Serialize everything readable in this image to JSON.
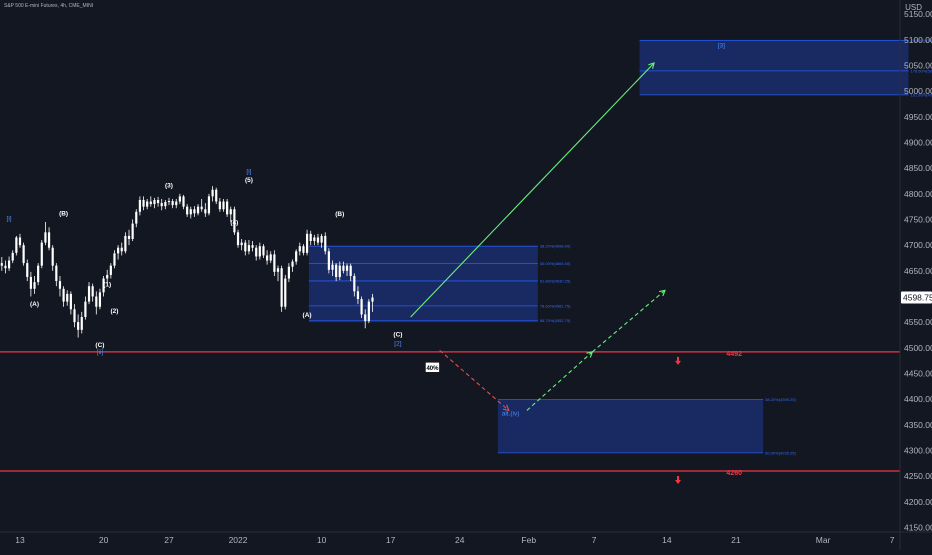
{
  "header": {
    "symbol_line": "S&P 500 E-mini Futures, 4h, CME_MINI",
    "currency": "USD"
  },
  "colors": {
    "background": "#131722",
    "candle": "#ffffff",
    "zone_fill": "#1c2f73",
    "zone_line": "#2962ff",
    "support": "#f23645",
    "projection": "#69f07b",
    "alt_projection": "#e05050",
    "price_label_bg": "#ffffff"
  },
  "chart_data": {
    "type": "candlestick",
    "title": "S&P 500 E-mini Futures, 4h, CME_MINI",
    "ylim": [
      4145,
      5165
    ],
    "y_ticks": [
      4150,
      4200,
      4250,
      4300,
      4350,
      4400,
      4450,
      4500,
      4550,
      4600,
      4650,
      4700,
      4750,
      4800,
      4850,
      4900,
      4950,
      5000,
      5050,
      5100,
      5150
    ],
    "x_ticks": [
      {
        "label": "13",
        "i": 0
      },
      {
        "label": "20",
        "i": 23
      },
      {
        "label": "27",
        "i": 41
      },
      {
        "label": "2022",
        "i": 60
      },
      {
        "label": "10",
        "i": 83
      },
      {
        "label": "17",
        "i": 102
      },
      {
        "label": "24",
        "i": 121
      },
      {
        "label": "Feb",
        "i": 140
      },
      {
        "label": "7",
        "i": 158
      },
      {
        "label": "14",
        "i": 178
      },
      {
        "label": "21",
        "i": 197
      },
      {
        "label": "Mar",
        "i": 221
      },
      {
        "label": "7",
        "i": 240
      }
    ],
    "candles": [
      [
        4665,
        4677,
        4650,
        4660
      ],
      [
        4660,
        4670,
        4645,
        4655
      ],
      [
        4655,
        4678,
        4650,
        4670
      ],
      [
        4670,
        4690,
        4665,
        4685
      ],
      [
        4685,
        4718,
        4680,
        4715
      ],
      [
        4715,
        4722,
        4695,
        4700
      ],
      [
        4700,
        4705,
        4660,
        4665
      ],
      [
        4665,
        4672,
        4630,
        4638
      ],
      [
        4638,
        4648,
        4600,
        4615
      ],
      [
        4615,
        4640,
        4605,
        4628
      ],
      [
        4628,
        4665,
        4622,
        4660
      ],
      [
        4660,
        4710,
        4655,
        4705
      ],
      [
        4705,
        4745,
        4700,
        4725
      ],
      [
        4725,
        4735,
        4690,
        4695
      ],
      [
        4695,
        4700,
        4650,
        4660
      ],
      [
        4660,
        4665,
        4620,
        4630
      ],
      [
        4630,
        4640,
        4600,
        4615
      ],
      [
        4615,
        4620,
        4580,
        4590
      ],
      [
        4590,
        4612,
        4582,
        4605
      ],
      [
        4605,
        4610,
        4565,
        4575
      ],
      [
        4575,
        4585,
        4540,
        4550
      ],
      [
        4550,
        4565,
        4520,
        4535
      ],
      [
        4535,
        4570,
        4528,
        4560
      ],
      [
        4560,
        4600,
        4555,
        4590
      ],
      [
        4590,
        4628,
        4585,
        4620
      ],
      [
        4620,
        4625,
        4590,
        4600
      ],
      [
        4600,
        4610,
        4565,
        4580
      ],
      [
        4580,
        4615,
        4575,
        4608
      ],
      [
        4608,
        4640,
        4600,
        4635
      ],
      [
        4635,
        4652,
        4625,
        4642
      ],
      [
        4642,
        4665,
        4635,
        4660
      ],
      [
        4660,
        4690,
        4655,
        4684
      ],
      [
        4684,
        4700,
        4672,
        4695
      ],
      [
        4695,
        4705,
        4680,
        4688
      ],
      [
        4688,
        4725,
        4684,
        4718
      ],
      [
        4718,
        4730,
        4700,
        4712
      ],
      [
        4712,
        4750,
        4708,
        4742
      ],
      [
        4742,
        4770,
        4735,
        4765
      ],
      [
        4765,
        4795,
        4758,
        4788
      ],
      [
        4788,
        4795,
        4768,
        4775
      ],
      [
        4775,
        4790,
        4770,
        4785
      ],
      [
        4785,
        4795,
        4775,
        4780
      ],
      [
        4780,
        4792,
        4772,
        4788
      ],
      [
        4788,
        4794,
        4775,
        4782
      ],
      [
        4782,
        4790,
        4768,
        4776
      ],
      [
        4776,
        4788,
        4770,
        4784
      ],
      [
        4784,
        4792,
        4778,
        4786
      ],
      [
        4786,
        4790,
        4772,
        4778
      ],
      [
        4778,
        4790,
        4772,
        4785
      ],
      [
        4785,
        4800,
        4780,
        4795
      ],
      [
        4795,
        4798,
        4770,
        4775
      ],
      [
        4775,
        4780,
        4755,
        4760
      ],
      [
        4760,
        4775,
        4752,
        4770
      ],
      [
        4770,
        4776,
        4755,
        4762
      ],
      [
        4762,
        4780,
        4758,
        4775
      ],
      [
        4775,
        4790,
        4765,
        4770
      ],
      [
        4770,
        4782,
        4755,
        4762
      ],
      [
        4762,
        4800,
        4758,
        4795
      ],
      [
        4795,
        4815,
        4785,
        4808
      ],
      [
        4808,
        4812,
        4780,
        4785
      ],
      [
        4785,
        4792,
        4765,
        4770
      ],
      [
        4770,
        4790,
        4765,
        4785
      ],
      [
        4785,
        4790,
        4755,
        4760
      ],
      [
        4760,
        4775,
        4745,
        4770
      ],
      [
        4770,
        4775,
        4720,
        4725
      ],
      [
        4725,
        4730,
        4695,
        4700
      ],
      [
        4700,
        4712,
        4690,
        4705
      ],
      [
        4705,
        4710,
        4680,
        4688
      ],
      [
        4688,
        4710,
        4682,
        4700
      ],
      [
        4700,
        4708,
        4688,
        4695
      ],
      [
        4695,
        4700,
        4670,
        4678
      ],
      [
        4678,
        4705,
        4672,
        4698
      ],
      [
        4698,
        4702,
        4675,
        4680
      ],
      [
        4680,
        4690,
        4662,
        4670
      ],
      [
        4670,
        4688,
        4665,
        4682
      ],
      [
        4682,
        4690,
        4640,
        4648
      ],
      [
        4648,
        4660,
        4630,
        4655
      ],
      [
        4655,
        4660,
        4570,
        4580
      ],
      [
        4580,
        4642,
        4575,
        4635
      ],
      [
        4635,
        4665,
        4628,
        4658
      ],
      [
        4658,
        4672,
        4648,
        4668
      ],
      [
        4668,
        4692,
        4662,
        4688
      ],
      [
        4688,
        4705,
        4680,
        4698
      ],
      [
        4698,
        4702,
        4680,
        4685
      ],
      [
        4685,
        4730,
        4680,
        4722
      ],
      [
        4722,
        4728,
        4700,
        4708
      ],
      [
        4708,
        4720,
        4700,
        4715
      ],
      [
        4715,
        4722,
        4700,
        4705
      ],
      [
        4705,
        4722,
        4695,
        4718
      ],
      [
        4718,
        4725,
        4682,
        4688
      ],
      [
        4688,
        4694,
        4645,
        4652
      ],
      [
        4652,
        4670,
        4640,
        4662
      ],
      [
        4662,
        4665,
        4630,
        4638
      ],
      [
        4638,
        4668,
        4632,
        4660
      ],
      [
        4660,
        4668,
        4645,
        4650
      ],
      [
        4650,
        4664,
        4640,
        4660
      ],
      [
        4660,
        4664,
        4630,
        4640
      ],
      [
        4640,
        4645,
        4600,
        4610
      ],
      [
        4610,
        4620,
        4585,
        4595
      ],
      [
        4595,
        4600,
        4558,
        4565
      ],
      [
        4565,
        4575,
        4538,
        4552
      ],
      [
        4552,
        4595,
        4548,
        4590
      ],
      [
        4590,
        4605,
        4570,
        4598
      ]
    ],
    "price_label": "4598.75",
    "support_levels": [
      {
        "value": 4492,
        "label": "4492"
      },
      {
        "value": 4260,
        "label": "4260"
      }
    ],
    "zones": [
      {
        "name": "target-zone-2",
        "i0": 176,
        "i1": 250,
        "top": 5100,
        "bottom": 4993,
        "levels": [
          {
            "value": 5099,
            "label": "200.00%(5099.00)"
          },
          {
            "value": 5039.5,
            "label": "178.60%(5039.50)"
          },
          {
            "value": 4992.75,
            "label": "161.80%(4992.75)"
          }
        ]
      },
      {
        "name": "correction-zone",
        "i0": 85,
        "i1": 148,
        "top": 4698,
        "bottom": 4550,
        "levels": [
          {
            "value": 4698,
            "label": "38.20%(4698.00)"
          },
          {
            "value": 4664,
            "label": "50.00%(4664.00)"
          },
          {
            "value": 4630.25,
            "label": "61.80%(4630.25)"
          },
          {
            "value": 4581.75,
            "label": "78.60%(4581.75)"
          },
          {
            "value": 4552.75,
            "label": "88.70%(4552.75)"
          }
        ]
      },
      {
        "name": "alt-zone",
        "i0": 137,
        "i1": 210,
        "top": 4399.25,
        "bottom": 4295.25,
        "levels": [
          {
            "value": 4399.25,
            "label": "38.20%(4399.25)"
          },
          {
            "value": 4295.25,
            "label": "50.00%(4295.25)"
          }
        ]
      }
    ],
    "wave_labels": [
      {
        "text": "[i]",
        "i": 2,
        "y": 4748,
        "color": "#4d8cff"
      },
      {
        "text": "(A)",
        "i": 9,
        "y": 4581,
        "color": "#ffffff"
      },
      {
        "text": "(B)",
        "i": 17,
        "y": 4758,
        "color": "#ffffff"
      },
      {
        "text": "(C)",
        "i": 27,
        "y": 4502,
        "color": "#ffffff"
      },
      {
        "text": "[ii]",
        "i": 27,
        "y": 4488,
        "color": "#4d8cff"
      },
      {
        "text": "(1)",
        "i": 29,
        "y": 4619,
        "color": "#ffffff"
      },
      {
        "text": "(2)",
        "i": 31,
        "y": 4568,
        "color": "#ffffff"
      },
      {
        "text": "(3)",
        "i": 46,
        "y": 4812,
        "color": "#ffffff"
      },
      {
        "text": "(4)",
        "i": 64,
        "y": 4740,
        "color": "#ffffff"
      },
      {
        "text": "[i]",
        "i": 68,
        "y": 4840,
        "color": "#4d8cff"
      },
      {
        "text": "(5)",
        "i": 68,
        "y": 4823,
        "color": "#ffffff"
      },
      {
        "text": "(A)",
        "i": 84,
        "y": 4560,
        "color": "#ffffff"
      },
      {
        "text": "(B)",
        "i": 93,
        "y": 4757,
        "color": "#ffffff"
      },
      {
        "text": "(C)",
        "i": 109,
        "y": 4522,
        "color": "#ffffff"
      },
      {
        "text": "[2]",
        "i": 109,
        "y": 4504,
        "color": "#4d8cff"
      },
      {
        "text": "[3]",
        "i": 198,
        "y": 5085,
        "color": "#4d8cff"
      },
      {
        "text": "alt.(iv)",
        "i": 140,
        "y": 4368,
        "color": "#4d8cff"
      }
    ],
    "projections": [
      {
        "name": "main-path",
        "from": [
          113,
          4560
        ],
        "to": [
          180,
          5055
        ],
        "dashed": false,
        "color": "#69f07b"
      },
      {
        "name": "alt-path-down",
        "from": [
          121,
          4495
        ],
        "to": [
          140,
          4378
        ],
        "dashed": true,
        "color": "#e05050"
      },
      {
        "name": "alt-path-up-1",
        "from": [
          145,
          4378
        ],
        "to": [
          163,
          4492
        ],
        "dashed": true,
        "color": "#69f07b"
      },
      {
        "name": "alt-path-up-2",
        "from": [
          163,
          4492
        ],
        "to": [
          183,
          4612
        ],
        "dashed": true,
        "color": "#69f07b"
      }
    ],
    "probability_badge": {
      "text": "40%",
      "i": 119,
      "y": 4460
    }
  }
}
